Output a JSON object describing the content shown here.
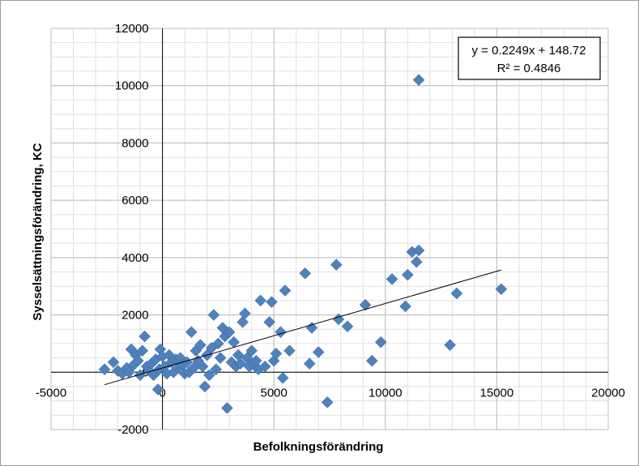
{
  "chart_data": {
    "type": "scatter",
    "xlabel": "Befolkningsförändring",
    "ylabel": "Sysselsättningsförändring, KC",
    "xlim": [
      -5000,
      20000
    ],
    "ylim": [
      -2000,
      12000
    ],
    "x_ticks": [
      "-5000",
      "0",
      "5000",
      "10000",
      "15000",
      "20000"
    ],
    "y_ticks": [
      "-2000",
      "0",
      "2000",
      "4000",
      "6000",
      "8000",
      "10000",
      "12000"
    ],
    "grid": true,
    "marker_color": "#4F81BD",
    "trendline": {
      "slope": 0.2249,
      "intercept": 148.72,
      "x_range": [
        -2600,
        15200
      ],
      "equation_label": "y = 0.2249x + 148.72",
      "r2_label": "R² = 0.4846",
      "color": "#000000"
    },
    "points": [
      [
        -2600,
        100
      ],
      [
        -2200,
        350
      ],
      [
        -2000,
        50
      ],
      [
        -1800,
        -50
      ],
      [
        -1600,
        150
      ],
      [
        -1500,
        0
      ],
      [
        -1400,
        800
      ],
      [
        -1300,
        250
      ],
      [
        -1200,
        600
      ],
      [
        -1100,
        400
      ],
      [
        -1000,
        -100
      ],
      [
        -900,
        750
      ],
      [
        -800,
        1250
      ],
      [
        -700,
        200
      ],
      [
        -600,
        50
      ],
      [
        -500,
        300
      ],
      [
        -400,
        -100
      ],
      [
        -300,
        450
      ],
      [
        -200,
        -600
      ],
      [
        -150,
        100
      ],
      [
        -100,
        800
      ],
      [
        0,
        550
      ],
      [
        100,
        200
      ],
      [
        200,
        -50
      ],
      [
        300,
        600
      ],
      [
        400,
        350
      ],
      [
        500,
        0
      ],
      [
        600,
        450
      ],
      [
        700,
        150
      ],
      [
        800,
        500
      ],
      [
        900,
        250
      ],
      [
        1000,
        -50
      ],
      [
        1100,
        350
      ],
      [
        1200,
        0
      ],
      [
        1300,
        1400
      ],
      [
        1400,
        150
      ],
      [
        1500,
        750
      ],
      [
        1600,
        400
      ],
      [
        1700,
        950
      ],
      [
        1800,
        200
      ],
      [
        1900,
        -500
      ],
      [
        2000,
        600
      ],
      [
        2100,
        -100
      ],
      [
        2200,
        850
      ],
      [
        2300,
        2000
      ],
      [
        2400,
        100
      ],
      [
        2500,
        1000
      ],
      [
        2600,
        500
      ],
      [
        2700,
        1550
      ],
      [
        2800,
        1250
      ],
      [
        2900,
        -1250
      ],
      [
        3000,
        1400
      ],
      [
        3100,
        350
      ],
      [
        3200,
        1050
      ],
      [
        3300,
        200
      ],
      [
        3400,
        600
      ],
      [
        3500,
        300
      ],
      [
        3600,
        1750
      ],
      [
        3700,
        2050
      ],
      [
        3800,
        500
      ],
      [
        3900,
        200
      ],
      [
        4000,
        750
      ],
      [
        4100,
        300
      ],
      [
        4200,
        400
      ],
      [
        4300,
        100
      ],
      [
        4400,
        2500
      ],
      [
        4600,
        200
      ],
      [
        4800,
        1750
      ],
      [
        4900,
        2450
      ],
      [
        5000,
        400
      ],
      [
        5100,
        650
      ],
      [
        5300,
        1400
      ],
      [
        5400,
        -200
      ],
      [
        5500,
        2850
      ],
      [
        5700,
        750
      ],
      [
        6400,
        3450
      ],
      [
        6600,
        300
      ],
      [
        6700,
        1550
      ],
      [
        7000,
        700
      ],
      [
        7400,
        -1050
      ],
      [
        7800,
        3750
      ],
      [
        7900,
        1850
      ],
      [
        8300,
        1600
      ],
      [
        9100,
        2350
      ],
      [
        9400,
        400
      ],
      [
        9800,
        1050
      ],
      [
        10300,
        3250
      ],
      [
        10900,
        2300
      ],
      [
        11000,
        3400
      ],
      [
        11200,
        4200
      ],
      [
        11400,
        3850
      ],
      [
        11500,
        4250
      ],
      [
        11500,
        10200
      ],
      [
        12900,
        950
      ],
      [
        13200,
        2750
      ],
      [
        15200,
        2900
      ]
    ]
  }
}
